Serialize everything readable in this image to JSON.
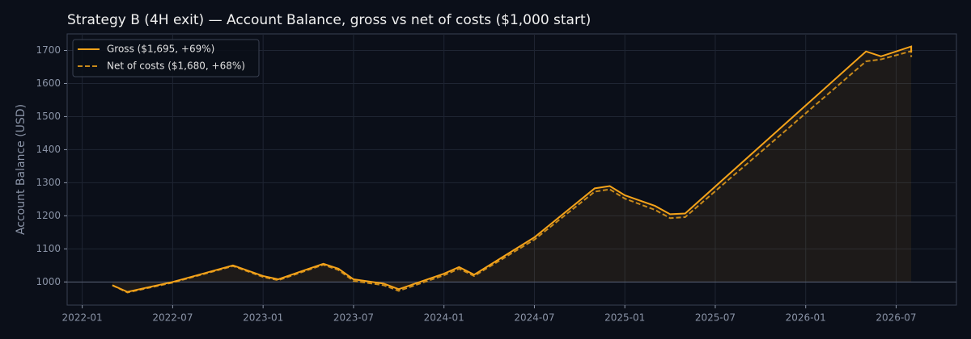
{
  "chart_data": {
    "type": "line",
    "title": "Strategy B (4H exit) — Account Balance, gross vs net of costs ($1,000 start)",
    "y_label": "Account Balance (USD)",
    "x": [
      "2022-03",
      "2022-04",
      "2022-07",
      "2022-11",
      "2023-01",
      "2023-02",
      "2023-05",
      "2023-06",
      "2023-07",
      "2023-09",
      "2023-10",
      "2024-01",
      "2024-02",
      "2024-03",
      "2024-07",
      "2024-11",
      "2024-12",
      "2025-01",
      "2025-03",
      "2025-04",
      "2025-05",
      "2026-05",
      "2026-06",
      "2026-08",
      "2026-08"
    ],
    "series": [
      {
        "name": "Gross ($1,695, +69%)",
        "color": "#f5a31a",
        "dash": false,
        "values": [
          990,
          970,
          1000,
          1050,
          1018,
          1008,
          1055,
          1040,
          1008,
          995,
          978,
          1025,
          1045,
          1022,
          1135,
          1283,
          1290,
          1262,
          1230,
          1205,
          1207,
          1697,
          1682,
          1712,
          1695
        ]
      },
      {
        "name": "Net of costs ($1,680, +68%)",
        "color": "#c98a1a",
        "dash": true,
        "values": [
          990,
          968,
          998,
          1048,
          1015,
          1005,
          1052,
          1036,
          1003,
          990,
          973,
          1020,
          1040,
          1018,
          1128,
          1273,
          1280,
          1252,
          1218,
          1193,
          1196,
          1667,
          1673,
          1698,
          1680
        ]
      }
    ],
    "baseline": 1000,
    "xlim": [
      "2021-12",
      "2026-11"
    ],
    "xticks": [
      "2022-01",
      "2022-07",
      "2023-01",
      "2023-07",
      "2024-01",
      "2024-07",
      "2025-01",
      "2025-07",
      "2026-01",
      "2026-07"
    ],
    "ylim": [
      930,
      1750
    ],
    "yticks": [
      1000,
      1100,
      1200,
      1300,
      1400,
      1500,
      1600,
      1700
    ],
    "grid": true,
    "legend": "upper-left"
  }
}
